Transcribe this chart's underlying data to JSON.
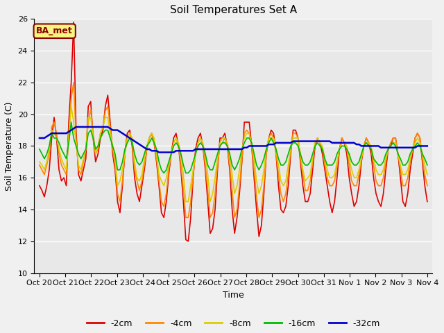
{
  "title": "Soil Temperatures Set A",
  "xlabel": "Time",
  "ylabel": "Soil Temperature (C)",
  "ylim": [
    10,
    26
  ],
  "annotation": "BA_met",
  "fig_bg": "#f0f0f0",
  "plot_bg": "#e8e8e8",
  "tick_labels": [
    "Oct 20",
    "Oct 21",
    "Oct 22",
    "Oct 23",
    "Oct 24",
    "Oct 25",
    "Oct 26",
    "Oct 27",
    "Oct 28",
    "Oct 29",
    "Oct 30",
    "Oct 31",
    "Nov 1",
    "Nov 2",
    "Nov 3",
    "Nov 4"
  ],
  "series": {
    "-2cm": {
      "color": "#dd0000",
      "lw": 1.2
    },
    "-4cm": {
      "color": "#ff8800",
      "lw": 1.2
    },
    "-8cm": {
      "color": "#ddcc00",
      "lw": 1.2
    },
    "-16cm": {
      "color": "#00bb00",
      "lw": 1.2
    },
    "-32cm": {
      "color": "#0000cc",
      "lw": 1.8
    }
  },
  "legend_order": [
    "-2cm",
    "-4cm",
    "-8cm",
    "-16cm",
    "-32cm"
  ],
  "d2cm": [
    15.5,
    15.2,
    14.8,
    15.5,
    16.5,
    18.5,
    19.8,
    18.5,
    16.5,
    15.8,
    16.0,
    15.5,
    19.5,
    22.0,
    25.8,
    19.0,
    16.2,
    15.8,
    16.5,
    17.2,
    20.5,
    20.8,
    18.5,
    17.0,
    17.5,
    18.5,
    19.0,
    20.5,
    21.2,
    19.5,
    17.5,
    16.5,
    14.5,
    13.8,
    15.5,
    17.5,
    18.8,
    19.0,
    18.0,
    16.0,
    15.0,
    14.5,
    15.5,
    16.5,
    17.8,
    18.5,
    18.8,
    18.2,
    17.0,
    15.5,
    13.8,
    13.5,
    14.5,
    16.2,
    17.5,
    18.5,
    18.8,
    18.0,
    16.5,
    14.5,
    12.1,
    12.0,
    13.5,
    16.0,
    17.8,
    18.5,
    18.8,
    18.0,
    16.5,
    14.5,
    12.5,
    12.8,
    14.0,
    16.5,
    18.5,
    18.5,
    18.8,
    18.0,
    16.5,
    14.0,
    12.5,
    13.5,
    15.0,
    17.0,
    19.5,
    19.5,
    19.5,
    18.0,
    16.0,
    14.0,
    12.3,
    13.0,
    15.0,
    17.5,
    18.5,
    19.0,
    18.8,
    17.5,
    15.5,
    14.0,
    13.8,
    14.2,
    15.5,
    17.5,
    19.0,
    19.0,
    18.5,
    17.0,
    15.5,
    14.5,
    14.5,
    15.0,
    16.5,
    18.0,
    18.5,
    18.2,
    17.5,
    16.5,
    15.5,
    14.5,
    13.8,
    14.5,
    16.0,
    17.8,
    18.5,
    18.2,
    17.5,
    16.0,
    15.0,
    14.2,
    14.5,
    15.5,
    17.0,
    18.0,
    18.5,
    18.2,
    17.5,
    16.0,
    15.0,
    14.5,
    14.2,
    15.0,
    16.5,
    17.8,
    18.0,
    18.5,
    18.5,
    17.5,
    16.0,
    14.5,
    14.2,
    15.0,
    16.5,
    17.5,
    18.5,
    18.8,
    18.5,
    17.0,
    15.5,
    14.5
  ],
  "d4cm": [
    16.8,
    16.5,
    16.2,
    16.8,
    17.5,
    19.2,
    19.5,
    18.8,
    17.5,
    16.8,
    16.5,
    16.2,
    18.8,
    21.0,
    22.0,
    18.5,
    16.5,
    16.2,
    17.0,
    17.8,
    19.5,
    20.3,
    18.8,
    17.5,
    17.8,
    18.8,
    19.2,
    20.2,
    20.5,
    19.2,
    17.8,
    16.8,
    15.0,
    14.5,
    15.8,
    17.5,
    18.5,
    18.8,
    18.2,
    16.5,
    15.8,
    15.2,
    15.8,
    16.8,
    17.8,
    18.5,
    18.8,
    18.2,
    17.2,
    15.8,
    14.5,
    14.2,
    15.0,
    16.5,
    17.5,
    18.2,
    18.5,
    18.0,
    16.8,
    15.2,
    13.5,
    13.5,
    14.5,
    16.2,
    17.5,
    18.2,
    18.5,
    18.0,
    16.8,
    15.2,
    13.5,
    13.8,
    15.0,
    16.8,
    18.0,
    18.2,
    18.5,
    18.0,
    16.8,
    15.2,
    13.5,
    14.0,
    15.5,
    17.2,
    18.8,
    19.0,
    18.8,
    18.0,
    16.5,
    14.8,
    13.5,
    14.0,
    15.5,
    17.5,
    18.5,
    18.8,
    18.5,
    17.5,
    16.2,
    15.0,
    14.5,
    15.0,
    16.2,
    17.8,
    18.8,
    18.8,
    18.5,
    17.2,
    16.2,
    15.2,
    15.2,
    15.8,
    17.0,
    18.2,
    18.5,
    18.2,
    17.8,
    16.8,
    16.0,
    15.5,
    15.5,
    15.8,
    16.8,
    17.8,
    18.5,
    18.2,
    17.8,
    16.8,
    15.8,
    15.5,
    15.5,
    16.2,
    17.2,
    18.0,
    18.5,
    18.2,
    17.8,
    16.8,
    15.8,
    15.5,
    15.5,
    16.0,
    17.0,
    17.8,
    18.2,
    18.5,
    18.5,
    17.5,
    16.5,
    15.5,
    15.5,
    16.0,
    17.0,
    17.8,
    18.5,
    18.8,
    18.5,
    17.2,
    16.2,
    15.5
  ],
  "d8cm": [
    17.0,
    16.8,
    16.5,
    17.0,
    17.8,
    19.0,
    18.8,
    18.5,
    17.8,
    17.2,
    16.8,
    16.5,
    18.5,
    20.5,
    19.5,
    18.2,
    16.8,
    16.5,
    17.2,
    17.8,
    19.8,
    19.8,
    18.5,
    17.5,
    18.0,
    18.8,
    19.2,
    19.8,
    19.8,
    18.8,
    18.0,
    17.2,
    15.5,
    15.8,
    16.5,
    17.5,
    18.5,
    18.8,
    18.5,
    17.0,
    16.0,
    15.8,
    16.2,
    17.2,
    18.0,
    18.5,
    18.8,
    18.5,
    17.5,
    16.2,
    15.8,
    15.5,
    16.0,
    16.8,
    17.5,
    18.2,
    18.5,
    18.2,
    17.5,
    16.2,
    14.5,
    14.5,
    15.5,
    16.5,
    17.5,
    18.2,
    18.5,
    18.2,
    17.5,
    16.2,
    14.5,
    15.0,
    16.0,
    17.2,
    18.2,
    18.5,
    18.5,
    18.2,
    17.5,
    16.2,
    15.0,
    15.5,
    16.5,
    17.8,
    18.5,
    18.8,
    18.8,
    18.2,
    17.2,
    15.8,
    15.0,
    15.5,
    16.5,
    17.8,
    18.5,
    18.5,
    18.5,
    17.8,
    16.8,
    15.8,
    15.5,
    15.8,
    16.8,
    17.8,
    18.5,
    18.5,
    18.5,
    17.5,
    16.5,
    15.8,
    16.0,
    16.2,
    17.2,
    18.2,
    18.5,
    18.2,
    18.0,
    17.2,
    16.5,
    16.0,
    16.0,
    16.2,
    17.0,
    17.8,
    18.2,
    18.2,
    18.0,
    17.2,
    16.5,
    16.0,
    16.0,
    16.5,
    17.2,
    18.0,
    18.2,
    18.2,
    18.0,
    17.2,
    16.5,
    16.2,
    16.2,
    16.5,
    17.2,
    17.8,
    18.0,
    18.2,
    18.2,
    17.5,
    16.8,
    16.2,
    16.2,
    16.5,
    17.2,
    17.8,
    18.2,
    18.5,
    18.2,
    17.5,
    16.8,
    16.2
  ],
  "d16cm": [
    17.8,
    17.5,
    17.2,
    17.5,
    18.0,
    18.8,
    18.5,
    18.5,
    18.2,
    17.8,
    17.5,
    17.2,
    18.2,
    19.5,
    18.5,
    18.0,
    17.5,
    17.2,
    17.5,
    17.8,
    18.8,
    19.0,
    18.5,
    17.8,
    18.0,
    18.5,
    18.8,
    19.0,
    19.0,
    18.5,
    18.0,
    17.5,
    16.5,
    16.5,
    17.0,
    17.8,
    18.2,
    18.5,
    18.2,
    17.5,
    17.0,
    16.8,
    17.0,
    17.5,
    18.0,
    18.2,
    18.5,
    18.2,
    17.8,
    17.0,
    16.5,
    16.3,
    16.5,
    17.0,
    17.5,
    18.0,
    18.2,
    18.0,
    17.5,
    16.8,
    16.3,
    16.3,
    16.5,
    17.0,
    17.5,
    18.0,
    18.2,
    18.0,
    17.5,
    16.8,
    16.5,
    16.5,
    17.0,
    17.5,
    18.0,
    18.2,
    18.2,
    18.0,
    17.5,
    16.8,
    16.5,
    16.8,
    17.2,
    17.8,
    18.2,
    18.5,
    18.5,
    18.2,
    17.5,
    16.8,
    16.5,
    16.8,
    17.2,
    17.8,
    18.2,
    18.5,
    18.2,
    17.8,
    17.2,
    16.8,
    16.8,
    17.0,
    17.5,
    18.0,
    18.2,
    18.2,
    18.0,
    17.5,
    17.0,
    16.8,
    16.8,
    17.0,
    17.5,
    18.0,
    18.2,
    18.0,
    17.8,
    17.2,
    16.8,
    16.8,
    16.8,
    17.0,
    17.5,
    17.8,
    18.0,
    18.0,
    17.8,
    17.5,
    17.0,
    16.8,
    16.8,
    17.0,
    17.5,
    18.0,
    18.2,
    18.0,
    17.8,
    17.2,
    17.0,
    16.8,
    16.8,
    17.0,
    17.5,
    17.8,
    18.0,
    18.2,
    18.0,
    17.5,
    17.2,
    16.8,
    16.8,
    17.0,
    17.5,
    17.8,
    18.0,
    18.2,
    18.0,
    17.5,
    17.2,
    16.8
  ],
  "d32cm": [
    18.5,
    18.5,
    18.5,
    18.6,
    18.7,
    18.8,
    18.8,
    18.8,
    18.8,
    18.8,
    18.8,
    18.8,
    18.9,
    19.0,
    19.1,
    19.2,
    19.2,
    19.2,
    19.2,
    19.2,
    19.2,
    19.2,
    19.2,
    19.2,
    19.2,
    19.2,
    19.2,
    19.2,
    19.2,
    19.1,
    19.0,
    19.0,
    19.0,
    18.9,
    18.8,
    18.7,
    18.6,
    18.5,
    18.4,
    18.3,
    18.2,
    18.1,
    18.0,
    17.9,
    17.8,
    17.8,
    17.7,
    17.7,
    17.7,
    17.6,
    17.6,
    17.6,
    17.6,
    17.6,
    17.6,
    17.6,
    17.7,
    17.7,
    17.7,
    17.7,
    17.7,
    17.7,
    17.7,
    17.7,
    17.8,
    17.8,
    17.8,
    17.8,
    17.8,
    17.8,
    17.8,
    17.8,
    17.8,
    17.8,
    17.8,
    17.8,
    17.8,
    17.8,
    17.8,
    17.8,
    17.8,
    17.8,
    17.8,
    17.8,
    17.9,
    17.9,
    18.0,
    18.0,
    18.0,
    18.0,
    18.0,
    18.0,
    18.0,
    18.0,
    18.1,
    18.1,
    18.1,
    18.2,
    18.2,
    18.2,
    18.2,
    18.2,
    18.2,
    18.2,
    18.3,
    18.3,
    18.3,
    18.3,
    18.3,
    18.3,
    18.3,
    18.3,
    18.3,
    18.3,
    18.3,
    18.3,
    18.3,
    18.3,
    18.3,
    18.3,
    18.2,
    18.2,
    18.2,
    18.2,
    18.2,
    18.2,
    18.2,
    18.2,
    18.2,
    18.2,
    18.1,
    18.1,
    18.0,
    18.0,
    18.0,
    18.0,
    18.0,
    18.0,
    18.0,
    18.0,
    17.9,
    17.9,
    17.9,
    17.9,
    17.9,
    17.9,
    17.9,
    17.9,
    17.9,
    17.9,
    17.9,
    17.9,
    17.9,
    17.9,
    17.9,
    18.0,
    18.0,
    18.0,
    18.0,
    18.0
  ]
}
